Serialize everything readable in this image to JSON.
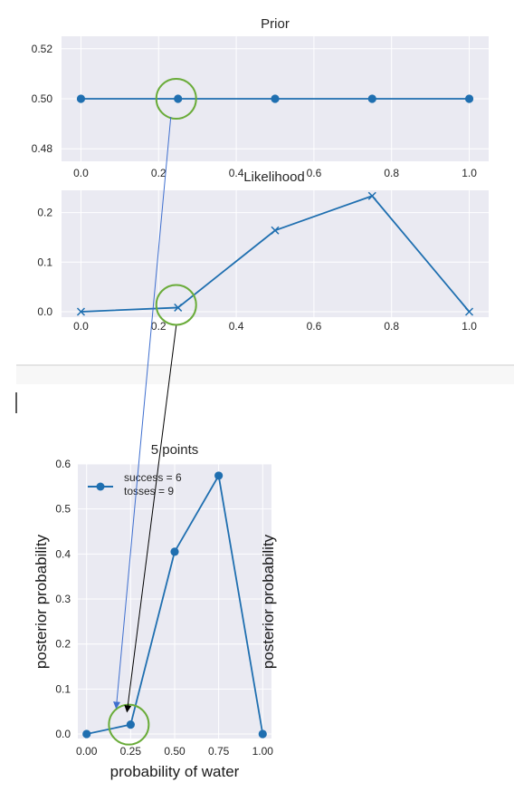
{
  "colors": {
    "line": "#1f6fb0",
    "panel_bg": "#eaeaf2",
    "grid": "#ffffff",
    "circle": "#6aac3a",
    "arrow_blue": "#3f6fcf",
    "arrow_black": "#000000",
    "divider": "#c8c8c8"
  },
  "chart_data": [
    {
      "id": "prior",
      "type": "line",
      "marker": "circle",
      "title": "Prior",
      "x": [
        0.0,
        0.25,
        0.5,
        0.75,
        1.0
      ],
      "y": [
        0.5,
        0.5,
        0.5,
        0.5,
        0.5
      ],
      "xlim": [
        -0.05,
        1.05
      ],
      "ylim": [
        0.475,
        0.525
      ],
      "xticks": [
        0.0,
        0.2,
        0.4,
        0.6,
        0.8,
        1.0
      ],
      "xtick_labels": [
        "0.0",
        "0.2",
        "0.4",
        "0.6",
        "0.8",
        "1.0"
      ],
      "yticks": [
        0.48,
        0.5,
        0.52
      ],
      "ytick_labels": [
        "0.48",
        "0.50",
        "0.52"
      ],
      "grid": true,
      "highlight_x": 0.25
    },
    {
      "id": "likelihood",
      "type": "line",
      "marker": "x",
      "title": "Likelihood",
      "x": [
        0.0,
        0.25,
        0.5,
        0.75,
        1.0
      ],
      "y": [
        0.0,
        0.0083,
        0.1641,
        0.2336,
        0.0
      ],
      "xlim": [
        -0.05,
        1.05
      ],
      "ylim": [
        -0.011,
        0.245
      ],
      "xticks": [
        0.0,
        0.2,
        0.4,
        0.6,
        0.8,
        1.0
      ],
      "xtick_labels": [
        "0.0",
        "0.2",
        "0.4",
        "0.6",
        "0.8",
        "1.0"
      ],
      "yticks": [
        0.0,
        0.1,
        0.2
      ],
      "ytick_labels": [
        "0.0",
        "0.1",
        "0.2"
      ],
      "grid": true,
      "highlight_x": 0.25
    },
    {
      "id": "posterior",
      "type": "line",
      "marker": "circle",
      "title": "5 points",
      "x": [
        0.0,
        0.25,
        0.5,
        0.75,
        1.0
      ],
      "y": [
        0.0,
        0.021,
        0.405,
        0.574,
        0.0
      ],
      "xlim": [
        -0.05,
        1.05
      ],
      "ylim": [
        -0.01,
        0.6
      ],
      "xticks": [
        0.0,
        0.25,
        0.5,
        0.75,
        1.0
      ],
      "xtick_labels": [
        "0.00",
        "0.25",
        "0.50",
        "0.75",
        "1.00"
      ],
      "yticks": [
        0.0,
        0.1,
        0.2,
        0.3,
        0.4,
        0.5,
        0.6
      ],
      "ytick_labels": [
        "0.0",
        "0.1",
        "0.2",
        "0.3",
        "0.4",
        "0.5",
        "0.6"
      ],
      "xlabel": "probability of water",
      "ylabel": "posterior probability",
      "ylabel_right": "posterior probability",
      "legend": [
        "success = 6",
        "tosses = 9"
      ],
      "legend_position": "top-left",
      "grid": true,
      "highlight_x": 0.25
    }
  ]
}
